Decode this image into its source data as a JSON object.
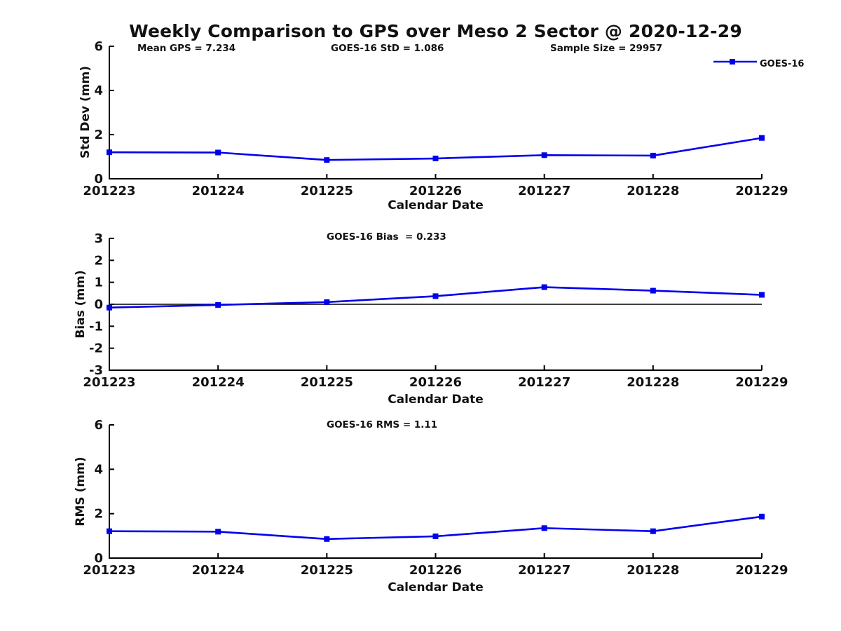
{
  "title": "Weekly Comparison to GPS over Meso 2 Sector @ 2020-12-29",
  "legend": {
    "label": "GOES-16"
  },
  "colors": {
    "background": "#ffffff",
    "axis": "#000000",
    "text": "#111111",
    "series": "#0000EE",
    "zero_line": "#000000"
  },
  "chart_data": [
    {
      "type": "line",
      "subplot": "std-dev",
      "annotations": {
        "left": "Mean GPS = 7.234",
        "center": "GOES-16 StD = 1.086",
        "right": "Sample Size = 29957"
      },
      "ylabel": "Std Dev (mm)",
      "xlabel": "Calendar Date",
      "categories": [
        "201223",
        "201224",
        "201225",
        "201226",
        "201227",
        "201228",
        "201229"
      ],
      "yticks": [
        0,
        2,
        4,
        6
      ],
      "ylim": [
        0,
        6
      ],
      "grid": false,
      "legend_position": "top-right",
      "series": [
        {
          "name": "GOES-16",
          "color": "#0000EE",
          "marker": "square",
          "values": [
            1.2,
            1.19,
            0.85,
            0.92,
            1.07,
            1.05,
            1.85
          ]
        }
      ]
    },
    {
      "type": "line",
      "subplot": "bias",
      "annotations": {
        "center": "GOES-16 Bias  = 0.233"
      },
      "ylabel": "Bias (mm)",
      "xlabel": "Calendar Date",
      "categories": [
        "201223",
        "201224",
        "201225",
        "201226",
        "201227",
        "201228",
        "201229"
      ],
      "yticks": [
        -3,
        -2,
        -1,
        0,
        1,
        2,
        3
      ],
      "ylim": [
        -3,
        3
      ],
      "grid": false,
      "zero_line": true,
      "series": [
        {
          "name": "GOES-16",
          "color": "#0000EE",
          "marker": "square",
          "values": [
            -0.15,
            -0.03,
            0.1,
            0.37,
            0.78,
            0.62,
            0.43
          ]
        }
      ]
    },
    {
      "type": "line",
      "subplot": "rms",
      "annotations": {
        "center": "GOES-16 RMS = 1.11"
      },
      "ylabel": "RMS (mm)",
      "xlabel": "Calendar Date",
      "categories": [
        "201223",
        "201224",
        "201225",
        "201226",
        "201227",
        "201228",
        "201229"
      ],
      "yticks": [
        0,
        2,
        4,
        6
      ],
      "ylim": [
        0,
        6
      ],
      "grid": false,
      "series": [
        {
          "name": "GOES-16",
          "color": "#0000EE",
          "marker": "square",
          "values": [
            1.21,
            1.19,
            0.86,
            0.98,
            1.35,
            1.21,
            1.87
          ]
        }
      ]
    }
  ]
}
